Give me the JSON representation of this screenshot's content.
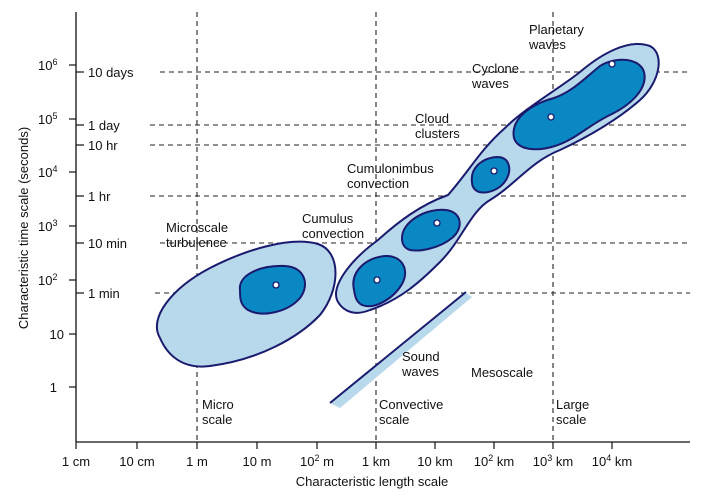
{
  "axes": {
    "x_title": "Characteristic length scale",
    "y_title": "Characteristic time scale (seconds)",
    "x_ticks": [
      {
        "base": "1 cm",
        "sup": ""
      },
      {
        "base": "10 cm",
        "sup": ""
      },
      {
        "base": "1 m",
        "sup": ""
      },
      {
        "base": "10 m",
        "sup": ""
      },
      {
        "base": "10",
        "sup": "2",
        "unit": " m"
      },
      {
        "base": "1 km",
        "sup": ""
      },
      {
        "base": "10 km",
        "sup": ""
      },
      {
        "base": "10",
        "sup": "2",
        "unit": " km"
      },
      {
        "base": "10",
        "sup": "3",
        "unit": " km"
      },
      {
        "base": "10",
        "sup": "4",
        "unit": " km"
      }
    ],
    "y_ticks": [
      {
        "base": "1",
        "sup": ""
      },
      {
        "base": "10",
        "sup": ""
      },
      {
        "base": "10",
        "sup": "2"
      },
      {
        "base": "10",
        "sup": "3"
      },
      {
        "base": "10",
        "sup": "4"
      },
      {
        "base": "10",
        "sup": "5"
      },
      {
        "base": "10",
        "sup": "6"
      }
    ],
    "time_marks": [
      "1 min",
      "10 min",
      "1 hr",
      "10 hr",
      "1 day",
      "10 days"
    ]
  },
  "phenomena": {
    "microscale_turbulence": [
      "Microscale",
      "turbulence"
    ],
    "cumulus_convection": [
      "Cumulus",
      "convection"
    ],
    "cumulonimbus_convection": [
      "Cumulonimbus",
      "convection"
    ],
    "cloud_clusters": [
      "Cloud",
      "clusters"
    ],
    "cyclone_waves": [
      "Cyclone",
      "waves"
    ],
    "planetary_waves": [
      "Planetary",
      "waves"
    ],
    "sound_waves": [
      "Sound",
      "waves"
    ]
  },
  "scales": {
    "micro": [
      "Micro",
      "scale"
    ],
    "convective": [
      "Convective",
      "scale"
    ],
    "mesoscale": [
      "Mesoscale"
    ],
    "large": [
      "Large",
      "scale"
    ]
  },
  "colors": {
    "light_region": "#b8d8ec",
    "dark_core": "#0a88c4",
    "outline": "#1a1a6e",
    "sound_band": "#b8d8ec"
  }
}
